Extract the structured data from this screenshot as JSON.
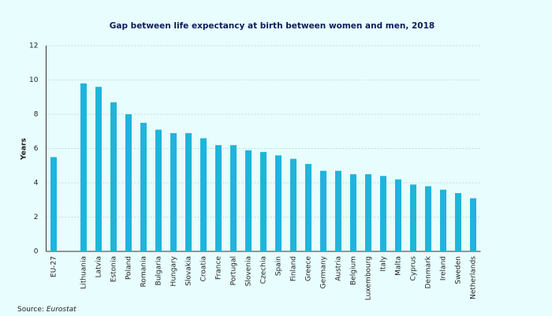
{
  "chart_data": {
    "type": "bar",
    "title": "Gap between life expectancy at birth between women and men, 2018",
    "y_label": "Years",
    "categories": [
      "EU-27",
      null,
      "Lithuania",
      "Latvia",
      "Estonia",
      "Poland",
      "Romania",
      "Bulgaria",
      "Hungary",
      "Slovakia",
      "Croatia",
      "France",
      "Portugal",
      "Slovenia",
      "Czechia",
      "Spain",
      "Finland",
      "Greece",
      "Germany",
      "Austria",
      "Belgium",
      "Luxembourg",
      "Italy",
      "Malta",
      "Cyprus",
      "Denmark",
      "Ireland",
      "Sweden",
      "Netherlands"
    ],
    "values": [
      5.5,
      null,
      9.8,
      9.6,
      8.7,
      8.0,
      7.5,
      7.1,
      6.9,
      6.9,
      6.6,
      6.2,
      6.2,
      5.9,
      5.8,
      5.6,
      5.4,
      5.1,
      4.7,
      4.7,
      4.5,
      4.5,
      4.4,
      4.2,
      3.9,
      3.8,
      3.6,
      3.4,
      3.1
    ],
    "color": "#1fb4dc",
    "ylim": [
      0,
      12
    ],
    "yticks": [
      0,
      2,
      4,
      6,
      8,
      10,
      12
    ],
    "grid": true,
    "source_label": "Source:",
    "source_name": "Eurostat"
  }
}
